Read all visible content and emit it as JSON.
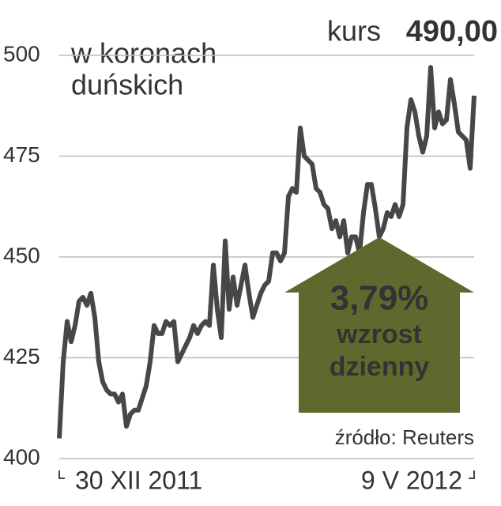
{
  "chart_data": {
    "type": "line",
    "y_axis_label": [
      "w koronach",
      "duńskich"
    ],
    "price_label": "kurs",
    "price": "490,00",
    "annotation": [
      "3,79%",
      "wzrost",
      "dzienny"
    ],
    "source": "źródło: Reuters",
    "color": "#474747",
    "ylim": [
      400,
      500
    ],
    "yticks": [
      400,
      425,
      450,
      475,
      500
    ],
    "grid": true,
    "categories": [
      "30 XII 2011",
      null,
      null,
      null,
      null,
      null,
      null,
      null,
      null,
      null,
      null,
      null,
      null,
      null,
      null,
      null,
      null,
      null,
      null,
      null,
      null,
      null,
      null,
      null,
      null,
      null,
      null,
      null,
      null,
      null,
      null,
      null,
      null,
      null,
      null,
      null,
      null,
      null,
      null,
      null,
      null,
      null,
      null,
      null,
      null,
      null,
      null,
      null,
      null,
      null,
      null,
      null,
      null,
      null,
      null,
      null,
      null,
      null,
      null,
      null,
      null,
      null,
      null,
      null,
      null,
      null,
      null,
      null,
      null,
      null,
      null,
      null,
      null,
      null,
      null,
      null,
      null,
      null,
      null,
      null,
      null,
      null,
      null,
      null,
      null,
      null,
      null,
      null,
      null,
      null,
      null,
      null,
      null,
      null,
      null,
      null,
      null,
      null,
      null,
      null,
      null,
      null,
      null,
      null,
      null,
      "9 V 2012"
    ],
    "values": [
      405,
      424,
      434,
      429,
      433,
      439,
      440,
      438,
      441,
      435,
      424,
      419,
      417,
      416,
      416,
      414,
      416,
      408,
      411,
      412,
      412,
      415,
      418,
      424,
      433,
      431,
      431,
      434,
      433,
      434,
      424,
      426,
      428,
      430,
      433,
      431,
      433,
      434,
      433,
      448,
      437,
      430,
      454,
      437,
      445,
      438,
      443,
      448,
      441,
      435,
      438,
      441,
      443,
      444,
      451,
      451,
      449,
      451,
      465,
      467,
      466,
      482,
      475,
      474,
      473,
      467,
      466,
      463,
      462,
      457,
      459,
      455,
      459,
      451,
      455,
      455,
      451,
      461,
      468,
      468,
      462,
      455,
      457,
      461,
      460,
      463,
      460,
      463,
      482,
      489,
      486,
      480,
      476,
      480,
      497,
      482,
      486,
      483,
      484,
      494,
      488,
      481,
      480,
      479,
      472,
      490
    ]
  }
}
